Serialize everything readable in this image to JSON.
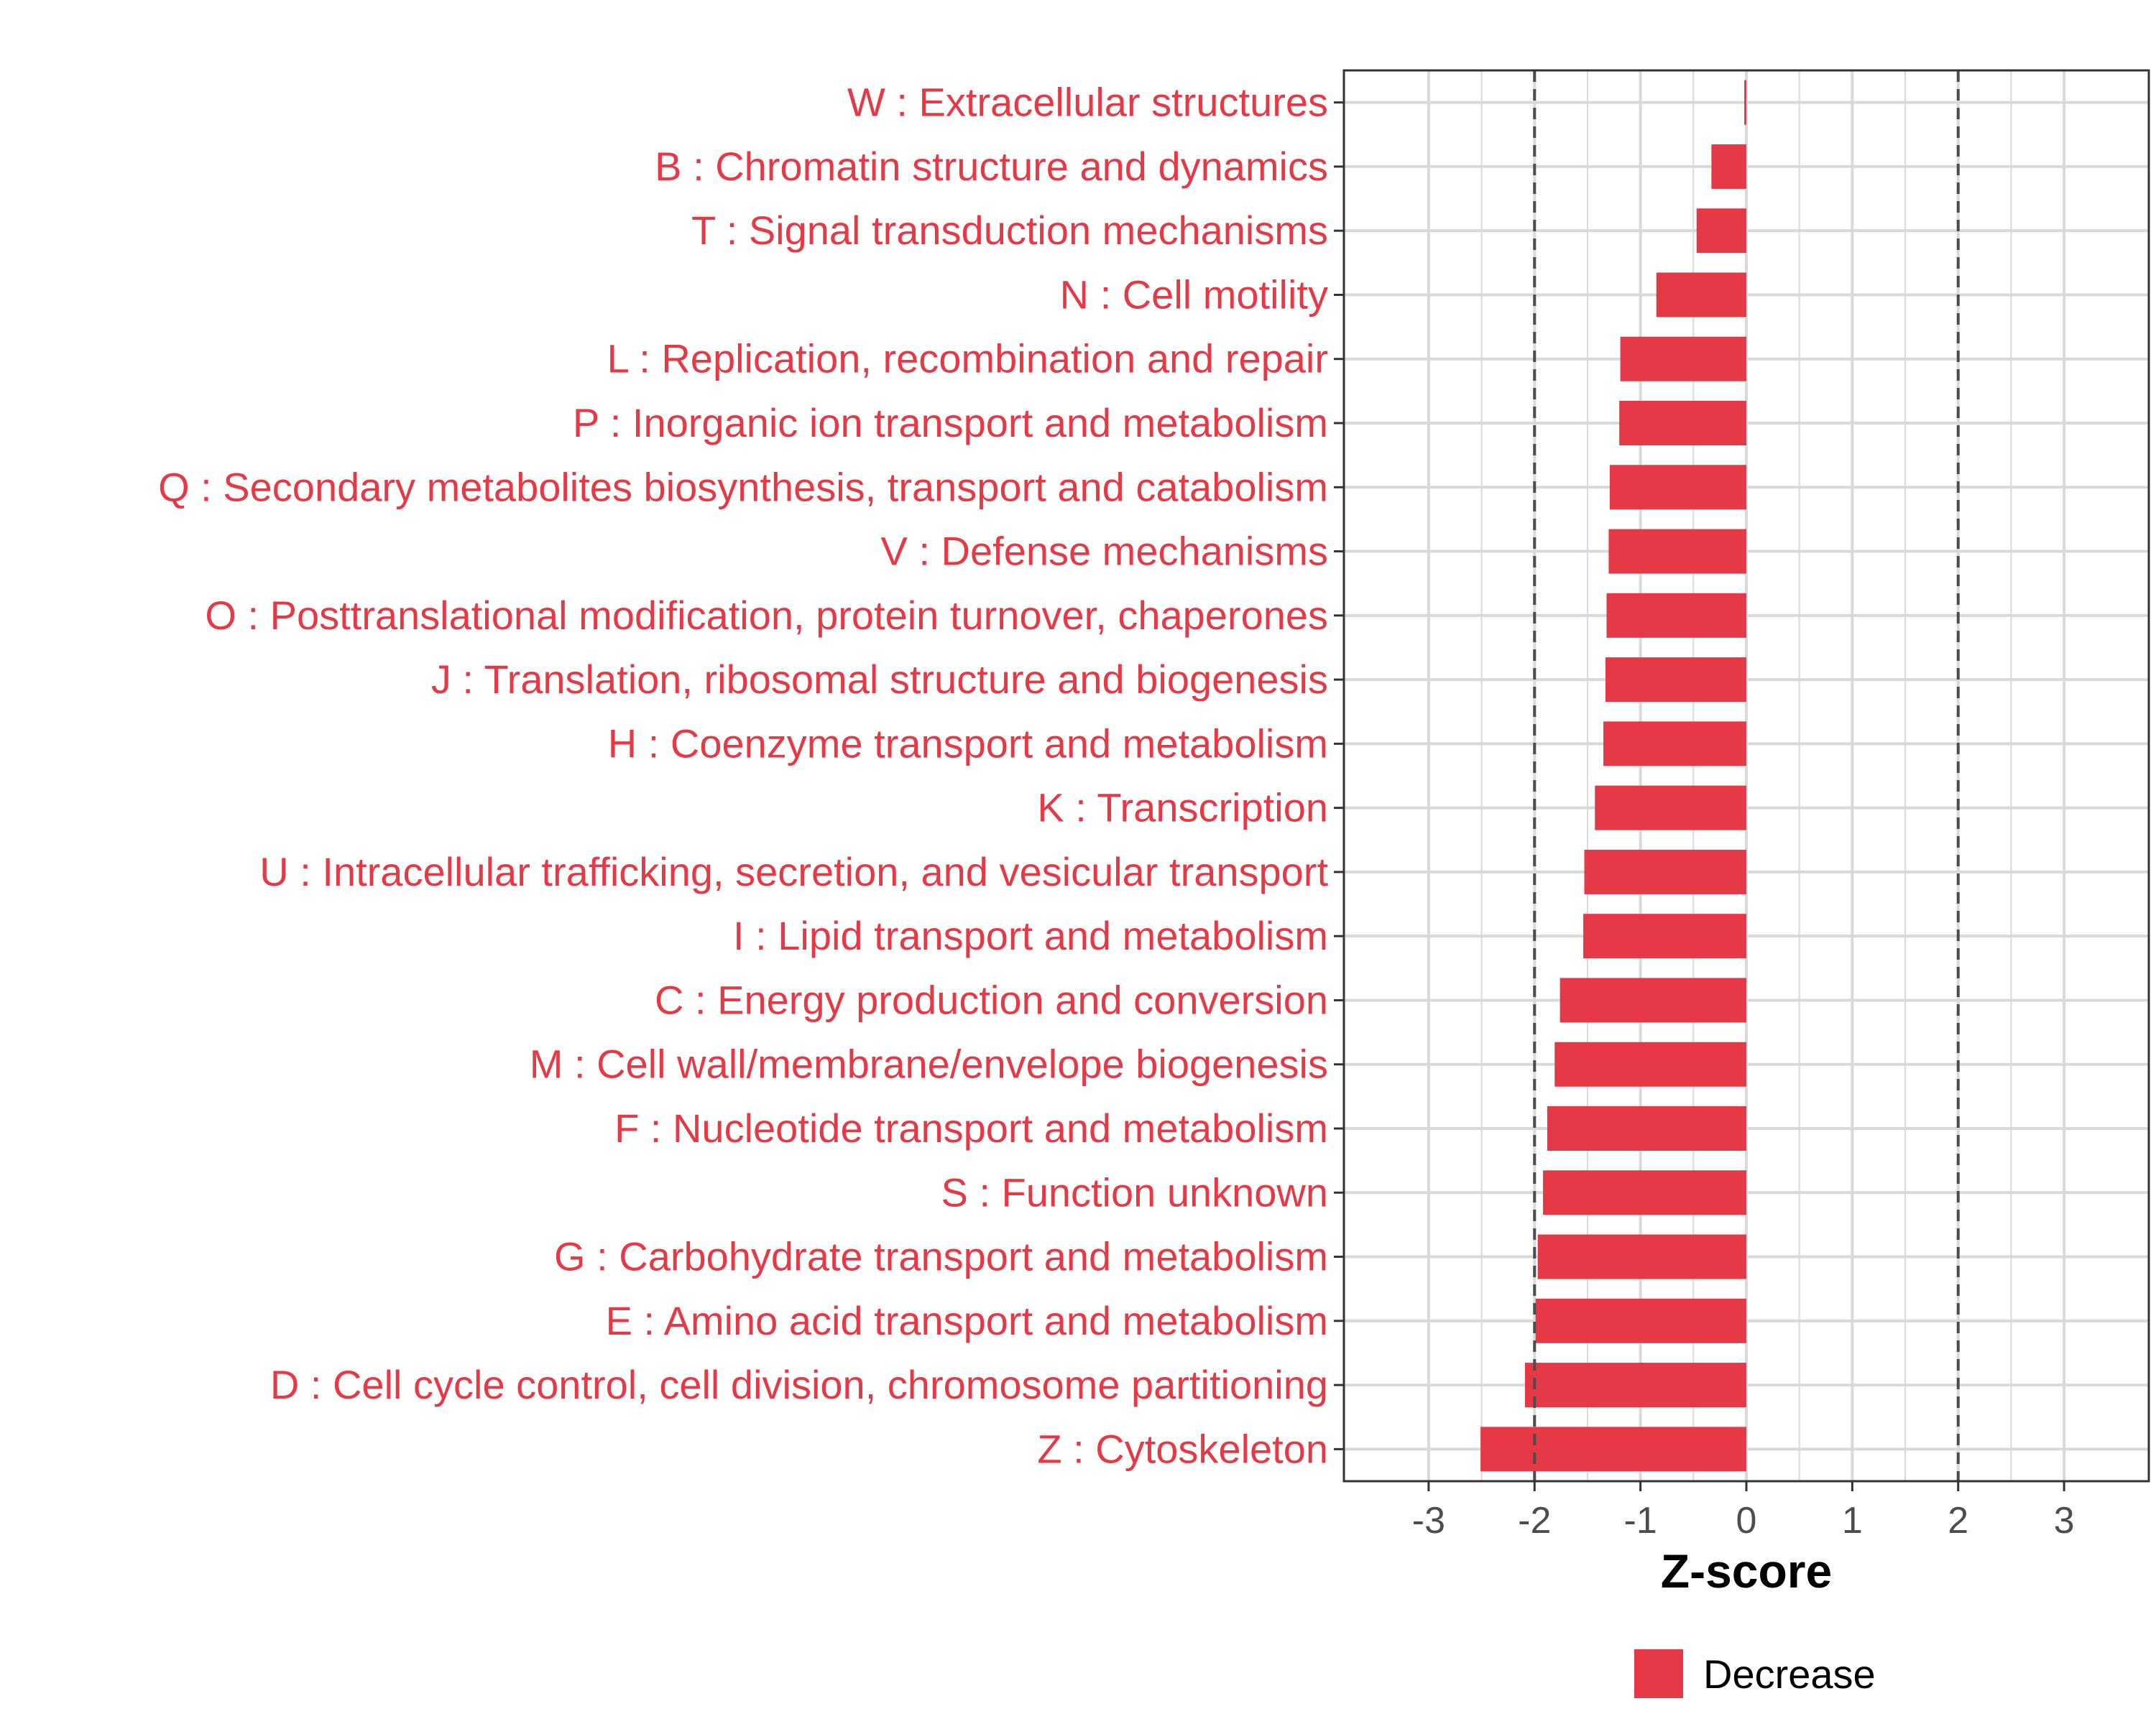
{
  "chart_data": {
    "type": "bar",
    "orientation": "horizontal",
    "categories": [
      "W : Extracellular structures",
      "B : Chromatin structure and dynamics",
      "T : Signal transduction mechanisms",
      "N : Cell motility",
      "L : Replication, recombination and repair",
      "P : Inorganic ion transport and metabolism",
      "Q : Secondary metabolites biosynthesis, transport and catabolism",
      "V : Defense mechanisms",
      "O : Posttranslational modification, protein turnover, chaperones",
      "J : Translation, ribosomal structure and biogenesis",
      "H : Coenzyme transport and metabolism",
      "K : Transcription",
      "U : Intracellular trafficking, secretion, and vesicular transport",
      "I : Lipid transport and metabolism",
      "C : Energy production and conversion",
      "M : Cell wall/membrane/envelope biogenesis",
      "F : Nucleotide transport and metabolism",
      "S : Function unknown",
      "G : Carbohydrate transport and metabolism",
      "E : Amino acid transport and metabolism",
      "D : Cell cycle control, cell division, chromosome partitioning",
      "Z : Cytoskeleton"
    ],
    "values": [
      -0.02,
      -0.33,
      -0.47,
      -0.85,
      -1.19,
      -1.2,
      -1.29,
      -1.3,
      -1.32,
      -1.33,
      -1.35,
      -1.43,
      -1.53,
      -1.54,
      -1.76,
      -1.81,
      -1.88,
      -1.92,
      -1.97,
      -1.99,
      -2.09,
      -2.51
    ],
    "xlabel": "Z-score",
    "ylabel": "",
    "xlim": [
      -3.8,
      3.8
    ],
    "xticks": [
      -3,
      -2,
      -1,
      0,
      1,
      2,
      3
    ],
    "xtick_labels": [
      "-3",
      "-2",
      "-1",
      "0",
      "1",
      "2",
      "3"
    ],
    "reference_lines": [
      -2,
      2
    ],
    "grid": true,
    "legend": {
      "position": "bottom",
      "entries": [
        {
          "label": "Decrease",
          "color": "#e63946"
        }
      ]
    }
  },
  "colors": {
    "bar": "#e63946",
    "label": "#e63946",
    "grid": "#d9d9d9",
    "reference_line": "#4d4d4d",
    "panel_border": "#333333"
  }
}
